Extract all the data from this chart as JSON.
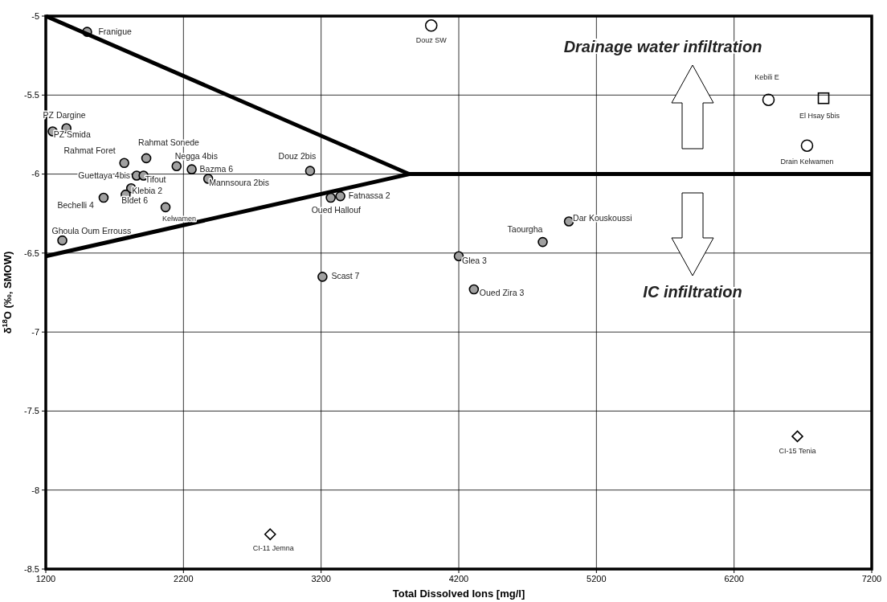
{
  "chart_data": {
    "type": "scatter",
    "xlabel": "Total Dissolved Ions [mg/l]",
    "ylabel": "δ$^{18}$O (‰, SMOW)",
    "xlim": [
      1200,
      7200
    ],
    "xticks": [
      1200,
      2200,
      3200,
      4200,
      5200,
      6200,
      7200
    ],
    "ylim": [
      -8.5,
      -5
    ],
    "yticks": [
      -8.5,
      -8,
      -7.5,
      -7,
      -6.5,
      -6,
      -5.5,
      -5
    ],
    "grid": true,
    "series": [
      {
        "marker": "circle",
        "color": "#a0a0a0",
        "x": [
          1500,
          1250,
          1350,
          1770,
          1930,
          2150,
          2260,
          2380,
          3120,
          1860,
          1910,
          1820,
          1780,
          1620,
          2070,
          1320,
          3270,
          3340,
          5000,
          4810,
          4200,
          3210,
          4310
        ],
        "values": [
          -5.1,
          -5.73,
          -5.71,
          -5.93,
          -5.9,
          -5.95,
          -5.97,
          -6.03,
          -5.98,
          -6.01,
          -6.01,
          -6.09,
          -6.13,
          -6.15,
          -6.21,
          -6.42,
          -6.15,
          -6.14,
          -6.3,
          -6.43,
          -6.52,
          -6.65,
          -6.73
        ]
      },
      {
        "marker": "circle",
        "color": "#000000",
        "x": [
          4000,
          6450,
          6730
        ],
        "values": [
          -5.06,
          -5.53,
          -5.82
        ]
      },
      {
        "marker": "square",
        "color": "#000000",
        "x": [
          6850
        ],
        "values": [
          -5.52
        ]
      },
      {
        "marker": "diamond",
        "color": "#000000",
        "x": [
          2830,
          6660
        ],
        "values": [
          -8.28,
          -7.66
        ]
      },
      {
        "type": "line",
        "marker": "none",
        "color": "#000000",
        "x": [
          1200,
          3840,
          7200
        ],
        "values": [
          -5,
          -6,
          -6
        ]
      },
      {
        "type": "line",
        "marker": "none",
        "color": "#000000",
        "x": [
          1200,
          3840
        ],
        "values": [
          -6.52,
          -6
        ]
      }
    ],
    "annotations": [
      {
        "text": "Franigue",
        "x": 1500,
        "y": -5.1
      },
      {
        "text": "PZ Dargine",
        "x": 1250,
        "y": -5.73
      },
      {
        "text": "PZ Smida",
        "x": 1350,
        "y": -5.71
      },
      {
        "text": "Rahmat Foret",
        "x": 1770,
        "y": -5.93
      },
      {
        "text": "Rahmat Sonede",
        "x": 1930,
        "y": -5.9
      },
      {
        "text": "Negga 4bis",
        "x": 2150,
        "y": -5.95
      },
      {
        "text": "Bazma 6",
        "x": 2260,
        "y": -5.97
      },
      {
        "text": "Mannsoura 2bis",
        "x": 2380,
        "y": -6.03
      },
      {
        "text": "Douz 2bis",
        "x": 3120,
        "y": -5.98
      },
      {
        "text": "Guettaya 4bis",
        "x": 1860,
        "y": -6.01
      },
      {
        "text": "Tifout",
        "x": 1910,
        "y": -6.01
      },
      {
        "text": "Klebia 2",
        "x": 1820,
        "y": -6.09
      },
      {
        "text": "Bldet 6",
        "x": 1780,
        "y": -6.13
      },
      {
        "text": "Bechelli 4",
        "x": 1620,
        "y": -6.15
      },
      {
        "text": "Kelwamen",
        "x": 2070,
        "y": -6.21
      },
      {
        "text": "Ghoula Oum Errouss",
        "x": 1320,
        "y": -6.42
      },
      {
        "text": "Oued Hallouf",
        "x": 3270,
        "y": -6.15
      },
      {
        "text": "Fatnassa 2",
        "x": 3340,
        "y": -6.14
      },
      {
        "text": "Douz SW",
        "x": 4000,
        "y": -5.06
      },
      {
        "text": "Dar Kouskoussi",
        "x": 5000,
        "y": -6.3
      },
      {
        "text": "Taourgha",
        "x": 4810,
        "y": -6.43
      },
      {
        "text": "Glea 3",
        "x": 4200,
        "y": -6.52
      },
      {
        "text": "Scast 7",
        "x": 3210,
        "y": -6.65
      },
      {
        "text": "Oued Zira 3",
        "x": 4310,
        "y": -6.73
      },
      {
        "text": "Kebili E",
        "x": 6450,
        "y": -5.53
      },
      {
        "text": "El Hsay 5bis",
        "x": 6850,
        "y": -5.52
      },
      {
        "text": "Drain Kelwamen",
        "x": 6730,
        "y": -5.82
      },
      {
        "text": "CI-11 Jemna",
        "x": 2830,
        "y": -8.28
      },
      {
        "text": "CI-15 Tenia",
        "x": 6660,
        "y": -7.66
      },
      "Drainage water infiltration",
      "IC infiltration"
    ]
  }
}
